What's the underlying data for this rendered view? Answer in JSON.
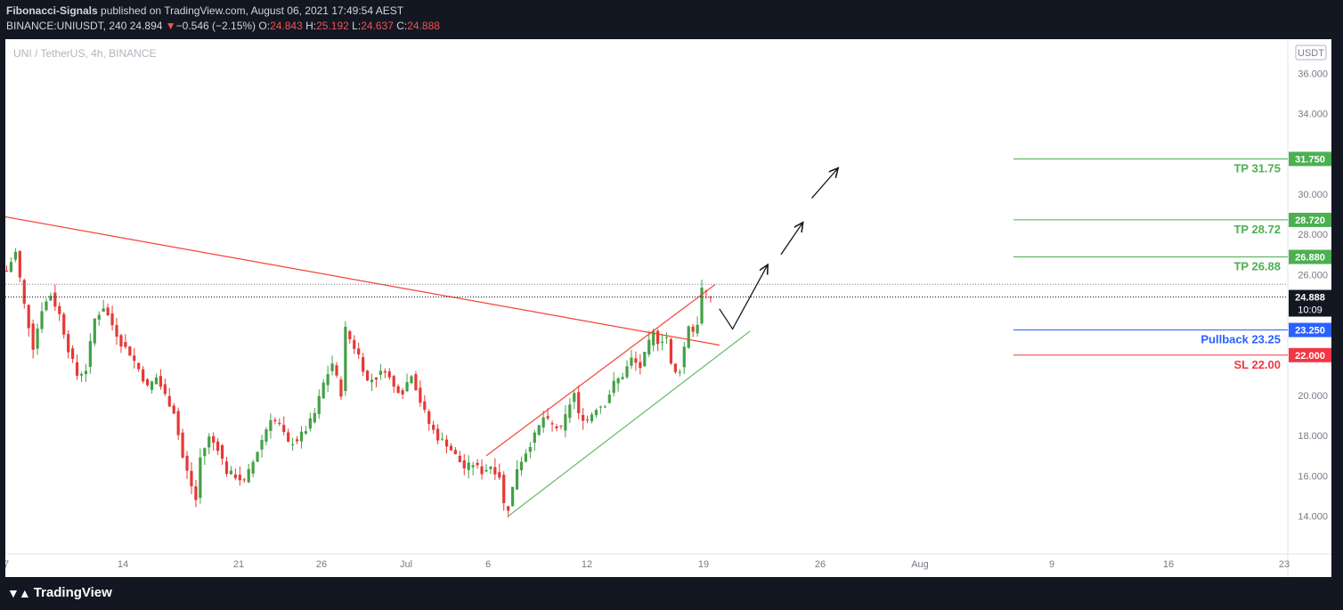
{
  "header": {
    "author": "Fibonacci-Signals",
    "published": " published on TradingView.com, August 06, 2021 17:49:54 AEST",
    "symbol_line": "BINANCE:UNIUSDT, 240",
    "last": "24.894",
    "change_arrow": "▼",
    "change": "−0.546 (−2.15%)",
    "o_label": "O:",
    "o_value": "24.843",
    "h_label": "H:",
    "h_value": "25.192",
    "l_label": "L:",
    "l_value": "24.637",
    "c_label": "C:",
    "c_value": "24.888"
  },
  "symbol_title": "UNI / TetherUS, 4h, BINANCE",
  "footer": {
    "logo_text": "TradingView",
    "logo_icon": "tradingview-logo-icon"
  },
  "colors": {
    "up": "#26a69a",
    "candle_up": "#43a047",
    "candle_down": "#e53935",
    "tp": "#4caf50",
    "pullback": "#2962ff",
    "sl": "#f23645",
    "trend_red": "#f44336",
    "trend_green": "#66bb6a"
  },
  "chart_data": {
    "type": "candlestick",
    "currency_label": "USDT",
    "y_ticks": [
      "36.000",
      "34.000",
      "30.000",
      "28.000",
      "26.000",
      "20.000",
      "18.000",
      "16.000",
      "14.000"
    ],
    "x_ticks": [
      "7",
      "14",
      "21",
      "26",
      "Jul",
      "6",
      "12",
      "19",
      "26",
      "Aug",
      "9",
      "16",
      "23"
    ],
    "last_price": "24.888",
    "countdown": "10:09",
    "levels": [
      {
        "name": "TP 31.75",
        "axis": "31.750",
        "value": 31.75,
        "kind": "tp"
      },
      {
        "name": "TP 28.72",
        "axis": "28.720",
        "value": 28.72,
        "kind": "tp"
      },
      {
        "name": "TP 26.88",
        "axis": "26.880",
        "value": 26.88,
        "kind": "tp"
      },
      {
        "name": "Pullback 23.25",
        "axis": "23.250",
        "value": 23.25,
        "kind": "pullback"
      },
      {
        "name": "SL 22.00",
        "axis": "22.000",
        "value": 22.0,
        "kind": "sl"
      }
    ],
    "price_path": [
      [
        0,
        26.2
      ],
      [
        2,
        27.1
      ],
      [
        4,
        24.5
      ],
      [
        6,
        22.4
      ],
      [
        8,
        24.3
      ],
      [
        10,
        25.0
      ],
      [
        12,
        24.0
      ],
      [
        14,
        22.3
      ],
      [
        16,
        21.0
      ],
      [
        18,
        21.3
      ],
      [
        20,
        23.8
      ],
      [
        22,
        24.4
      ],
      [
        24,
        23.5
      ],
      [
        26,
        22.6
      ],
      [
        28,
        22.1
      ],
      [
        30,
        21.3
      ],
      [
        32,
        20.4
      ],
      [
        34,
        20.9
      ],
      [
        36,
        20.0
      ],
      [
        38,
        19.2
      ],
      [
        40,
        16.9
      ],
      [
        42,
        15.5
      ],
      [
        43,
        14.8
      ],
      [
        44,
        16.9
      ],
      [
        46,
        17.9
      ],
      [
        48,
        17.4
      ],
      [
        50,
        16.2
      ],
      [
        52,
        16.0
      ],
      [
        54,
        15.7
      ],
      [
        56,
        16.7
      ],
      [
        58,
        17.8
      ],
      [
        60,
        18.9
      ],
      [
        62,
        18.5
      ],
      [
        64,
        17.6
      ],
      [
        66,
        17.8
      ],
      [
        68,
        18.3
      ],
      [
        70,
        19.1
      ],
      [
        72,
        20.6
      ],
      [
        74,
        21.6
      ],
      [
        76,
        20.1
      ],
      [
        77,
        23.3
      ],
      [
        78,
        22.8
      ],
      [
        80,
        22.0
      ],
      [
        82,
        20.7
      ],
      [
        84,
        20.9
      ],
      [
        86,
        21.3
      ],
      [
        88,
        20.4
      ],
      [
        90,
        20.2
      ],
      [
        92,
        21.1
      ],
      [
        94,
        19.7
      ],
      [
        96,
        18.6
      ],
      [
        98,
        17.9
      ],
      [
        100,
        17.6
      ],
      [
        102,
        17.0
      ],
      [
        104,
        16.4
      ],
      [
        106,
        16.6
      ],
      [
        108,
        16.2
      ],
      [
        110,
        16.5
      ],
      [
        112,
        16.0
      ],
      [
        113,
        14.6
      ],
      [
        114,
        14.4
      ],
      [
        116,
        16.4
      ],
      [
        118,
        17.2
      ],
      [
        120,
        18.0
      ],
      [
        122,
        18.9
      ],
      [
        124,
        18.5
      ],
      [
        126,
        18.3
      ],
      [
        128,
        19.6
      ],
      [
        129,
        20.1
      ],
      [
        130,
        19.0
      ],
      [
        132,
        18.8
      ],
      [
        134,
        19.4
      ],
      [
        136,
        19.6
      ],
      [
        138,
        20.6
      ],
      [
        140,
        21.0
      ],
      [
        142,
        21.8
      ],
      [
        144,
        21.4
      ],
      [
        146,
        22.6
      ],
      [
        147,
        23.1
      ],
      [
        148,
        22.7
      ],
      [
        150,
        22.9
      ],
      [
        151,
        21.5
      ],
      [
        152,
        21.1
      ],
      [
        153,
        21.3
      ],
      [
        154,
        22.4
      ],
      [
        155,
        23.5
      ],
      [
        156,
        23.2
      ],
      [
        157,
        23.6
      ],
      [
        158,
        25.3
      ],
      [
        159,
        25.0
      ],
      [
        160,
        24.9
      ]
    ],
    "trendlines": [
      {
        "kind": "trend_red",
        "from": [
          -1,
          28.9
        ],
        "to": [
          162,
          22.5
        ]
      },
      {
        "kind": "trend_red",
        "from": [
          109,
          17.0
        ],
        "to": [
          161,
          25.5
        ]
      },
      {
        "kind": "trend_green",
        "from": [
          114,
          14.0
        ],
        "to": [
          169,
          23.2
        ]
      }
    ],
    "projection_path": [
      [
        162,
        24.3
      ],
      [
        165,
        23.3
      ],
      [
        173,
        26.5
      ]
    ],
    "projection_arrows": [
      {
        "from": [
          176,
          27.0
        ],
        "to": [
          181,
          28.6
        ]
      },
      {
        "from": [
          183,
          29.8
        ],
        "to": [
          189,
          31.3
        ]
      }
    ]
  }
}
